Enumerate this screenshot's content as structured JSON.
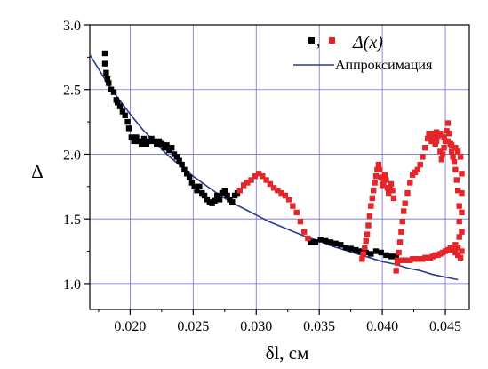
{
  "chart_data": {
    "type": "scatter",
    "xlabel": "δl, см",
    "ylabel": "Δ",
    "xlim": [
      0.0168,
      0.0469
    ],
    "ylim": [
      0.8,
      3.0
    ],
    "x_ticks": [
      0.02,
      0.025,
      0.03,
      0.035,
      0.04,
      0.045
    ],
    "x_tick_labels": [
      "0.020",
      "0.025",
      "0.030",
      "0.035",
      "0.040",
      "0.045"
    ],
    "y_ticks": [
      1.0,
      1.5,
      2.0,
      2.5,
      3.0
    ],
    "y_tick_labels": [
      "1.0",
      "1.5",
      "2.0",
      "2.5",
      "3.0"
    ],
    "grid": true,
    "legend_placement": "top-right",
    "legend": {
      "series_label": "Δ(x)",
      "separator": ",",
      "fit_label": "Аппроксимация"
    },
    "series": [
      {
        "role": "data-black",
        "color": "#000000",
        "points": [
          [
            0.018,
            2.78
          ],
          [
            0.018,
            2.7
          ],
          [
            0.0181,
            2.63
          ],
          [
            0.0182,
            2.58
          ],
          [
            0.0183,
            2.55
          ],
          [
            0.0185,
            2.5
          ],
          [
            0.0187,
            2.48
          ],
          [
            0.0189,
            2.42
          ],
          [
            0.019,
            2.4
          ],
          [
            0.0192,
            2.37
          ],
          [
            0.0194,
            2.33
          ],
          [
            0.0196,
            2.3
          ],
          [
            0.0198,
            2.25
          ],
          [
            0.0199,
            2.2
          ],
          [
            0.0201,
            2.13
          ],
          [
            0.0203,
            2.1
          ],
          [
            0.0205,
            2.13
          ],
          [
            0.0207,
            2.1
          ],
          [
            0.0209,
            2.08
          ],
          [
            0.0211,
            2.12
          ],
          [
            0.0213,
            2.08
          ],
          [
            0.0215,
            2.1
          ],
          [
            0.0217,
            2.12
          ],
          [
            0.0219,
            2.1
          ],
          [
            0.0221,
            2.08
          ],
          [
            0.0223,
            2.1
          ],
          [
            0.0225,
            2.08
          ],
          [
            0.0227,
            2.05
          ],
          [
            0.0229,
            2.07
          ],
          [
            0.0231,
            2.03
          ],
          [
            0.0233,
            2.05
          ],
          [
            0.0235,
            2.0
          ],
          [
            0.0237,
            1.98
          ],
          [
            0.0239,
            1.95
          ],
          [
            0.0241,
            1.92
          ],
          [
            0.0243,
            1.88
          ],
          [
            0.0245,
            1.85
          ],
          [
            0.0247,
            1.82
          ],
          [
            0.0249,
            1.78
          ],
          [
            0.0251,
            1.75
          ],
          [
            0.0253,
            1.72
          ],
          [
            0.0255,
            1.75
          ],
          [
            0.0257,
            1.7
          ],
          [
            0.0259,
            1.68
          ],
          [
            0.0261,
            1.65
          ],
          [
            0.0263,
            1.63
          ],
          [
            0.0265,
            1.62
          ],
          [
            0.0267,
            1.64
          ],
          [
            0.0269,
            1.68
          ],
          [
            0.0271,
            1.65
          ],
          [
            0.0273,
            1.7
          ],
          [
            0.0275,
            1.72
          ],
          [
            0.0277,
            1.68
          ],
          [
            0.0279,
            1.65
          ],
          [
            0.0281,
            1.63
          ],
          [
            0.0283,
            1.68
          ],
          [
            0.0285,
            1.7
          ],
          [
            0.0343,
            1.32
          ],
          [
            0.0347,
            1.32
          ],
          [
            0.0351,
            1.34
          ],
          [
            0.0355,
            1.33
          ],
          [
            0.0359,
            1.32
          ],
          [
            0.0363,
            1.31
          ],
          [
            0.0367,
            1.3
          ],
          [
            0.0371,
            1.28
          ],
          [
            0.0375,
            1.27
          ],
          [
            0.0379,
            1.26
          ],
          [
            0.0383,
            1.25
          ],
          [
            0.0387,
            1.24
          ],
          [
            0.0391,
            1.23
          ],
          [
            0.0395,
            1.25
          ],
          [
            0.0399,
            1.24
          ],
          [
            0.0403,
            1.22
          ],
          [
            0.0407,
            1.21
          ],
          [
            0.0411,
            1.21
          ]
        ]
      },
      {
        "role": "data-red",
        "color": "#e4262b",
        "points": [
          [
            0.0287,
            1.72
          ],
          [
            0.029,
            1.76
          ],
          [
            0.0293,
            1.78
          ],
          [
            0.0296,
            1.8
          ],
          [
            0.0299,
            1.83
          ],
          [
            0.0302,
            1.85
          ],
          [
            0.0305,
            1.83
          ],
          [
            0.0308,
            1.8
          ],
          [
            0.0311,
            1.77
          ],
          [
            0.0314,
            1.74
          ],
          [
            0.0317,
            1.72
          ],
          [
            0.032,
            1.7
          ],
          [
            0.0323,
            1.68
          ],
          [
            0.0326,
            1.65
          ],
          [
            0.0329,
            1.6
          ],
          [
            0.0332,
            1.55
          ],
          [
            0.0335,
            1.48
          ],
          [
            0.0338,
            1.4
          ],
          [
            0.0341,
            1.35
          ],
          [
            0.0384,
            1.19
          ],
          [
            0.0385,
            1.23
          ],
          [
            0.0386,
            1.28
          ],
          [
            0.0387,
            1.33
          ],
          [
            0.0388,
            1.38
          ],
          [
            0.0389,
            1.45
          ],
          [
            0.039,
            1.52
          ],
          [
            0.0391,
            1.6
          ],
          [
            0.0392,
            1.66
          ],
          [
            0.0393,
            1.72
          ],
          [
            0.0394,
            1.78
          ],
          [
            0.0395,
            1.83
          ],
          [
            0.0396,
            1.88
          ],
          [
            0.0397,
            1.92
          ],
          [
            0.0398,
            1.88
          ],
          [
            0.0399,
            1.82
          ],
          [
            0.04,
            1.76
          ],
          [
            0.0401,
            1.78
          ],
          [
            0.0402,
            1.84
          ],
          [
            0.0403,
            1.8
          ],
          [
            0.0404,
            1.74
          ],
          [
            0.0405,
            1.7
          ],
          [
            0.0406,
            1.73
          ],
          [
            0.0407,
            1.77
          ],
          [
            0.0408,
            1.72
          ],
          [
            0.0409,
            1.66
          ],
          [
            0.0411,
            1.1
          ],
          [
            0.0412,
            1.16
          ],
          [
            0.0413,
            1.24
          ],
          [
            0.0414,
            1.32
          ],
          [
            0.0415,
            1.4
          ],
          [
            0.0416,
            1.48
          ],
          [
            0.0417,
            1.56
          ],
          [
            0.0418,
            1.62
          ],
          [
            0.042,
            1.7
          ],
          [
            0.0422,
            1.78
          ],
          [
            0.0424,
            1.84
          ],
          [
            0.0426,
            1.86
          ],
          [
            0.0428,
            1.88
          ],
          [
            0.043,
            1.92
          ],
          [
            0.0432,
            1.98
          ],
          [
            0.0434,
            2.05
          ],
          [
            0.0436,
            2.12
          ],
          [
            0.0437,
            2.16
          ],
          [
            0.0438,
            2.12
          ],
          [
            0.0439,
            2.1
          ],
          [
            0.044,
            2.15
          ],
          [
            0.0441,
            2.12
          ],
          [
            0.0442,
            2.08
          ],
          [
            0.0443,
            2.1
          ],
          [
            0.0444,
            2.14
          ],
          [
            0.0445,
            2.15
          ],
          [
            0.0446,
            2.02
          ],
          [
            0.0447,
            1.96
          ],
          [
            0.0448,
            2.0
          ],
          [
            0.0449,
            2.05
          ],
          [
            0.045,
            2.1
          ],
          [
            0.0451,
            2.18
          ],
          [
            0.0452,
            2.24
          ],
          [
            0.0453,
            2.16
          ],
          [
            0.0454,
            2.08
          ],
          [
            0.0455,
            2.02
          ],
          [
            0.0456,
            1.98
          ],
          [
            0.0457,
            1.94
          ],
          [
            0.0458,
            1.88
          ],
          [
            0.0459,
            1.8
          ],
          [
            0.046,
            1.72
          ],
          [
            0.0461,
            1.6
          ],
          [
            0.0461,
            1.48
          ],
          [
            0.0461,
            1.36
          ],
          [
            0.046,
            1.28
          ],
          [
            0.0458,
            1.24
          ],
          [
            0.0456,
            1.26
          ],
          [
            0.0454,
            1.28
          ],
          [
            0.0452,
            1.26
          ],
          [
            0.045,
            1.25
          ],
          [
            0.0448,
            1.24
          ],
          [
            0.0446,
            1.23
          ],
          [
            0.0444,
            1.22
          ],
          [
            0.0442,
            1.22
          ],
          [
            0.044,
            1.21
          ],
          [
            0.0438,
            1.2
          ],
          [
            0.0436,
            1.2
          ],
          [
            0.0434,
            1.2
          ],
          [
            0.0432,
            1.19
          ],
          [
            0.043,
            1.19
          ],
          [
            0.0428,
            1.19
          ],
          [
            0.0426,
            1.19
          ],
          [
            0.0424,
            1.19
          ],
          [
            0.0422,
            1.18
          ],
          [
            0.042,
            1.18
          ],
          [
            0.0418,
            1.18
          ],
          [
            0.0416,
            1.18
          ],
          [
            0.0414,
            1.18
          ],
          [
            0.0412,
            1.18
          ],
          [
            0.044,
            2.16
          ],
          [
            0.0443,
            2.17
          ],
          [
            0.0446,
            2.16
          ],
          [
            0.0449,
            2.13
          ],
          [
            0.0452,
            2.1
          ],
          [
            0.0455,
            2.07
          ],
          [
            0.0458,
            2.05
          ],
          [
            0.046,
            2.02
          ],
          [
            0.0462,
            1.98
          ],
          [
            0.0463,
            1.85
          ],
          [
            0.0463,
            1.7
          ],
          [
            0.0463,
            1.55
          ],
          [
            0.0463,
            1.4
          ],
          [
            0.0463,
            1.25
          ],
          [
            0.0462,
            1.2
          ],
          [
            0.046,
            1.22
          ],
          [
            0.0458,
            1.3
          ]
        ]
      }
    ],
    "fit_curve": {
      "color": "#2b3a8c",
      "x": [
        0.0168,
        0.018,
        0.019,
        0.02,
        0.021,
        0.022,
        0.023,
        0.024,
        0.025,
        0.026,
        0.027,
        0.028,
        0.029,
        0.03,
        0.031,
        0.032,
        0.033,
        0.034,
        0.035,
        0.036,
        0.037,
        0.038,
        0.039,
        0.04,
        0.041,
        0.042,
        0.043,
        0.044,
        0.045,
        0.046
      ],
      "y": [
        2.77,
        2.58,
        2.44,
        2.31,
        2.19,
        2.09,
        1.99,
        1.91,
        1.83,
        1.76,
        1.69,
        1.63,
        1.58,
        1.53,
        1.48,
        1.44,
        1.4,
        1.36,
        1.33,
        1.29,
        1.26,
        1.23,
        1.2,
        1.17,
        1.15,
        1.12,
        1.1,
        1.07,
        1.05,
        1.03
      ]
    }
  }
}
